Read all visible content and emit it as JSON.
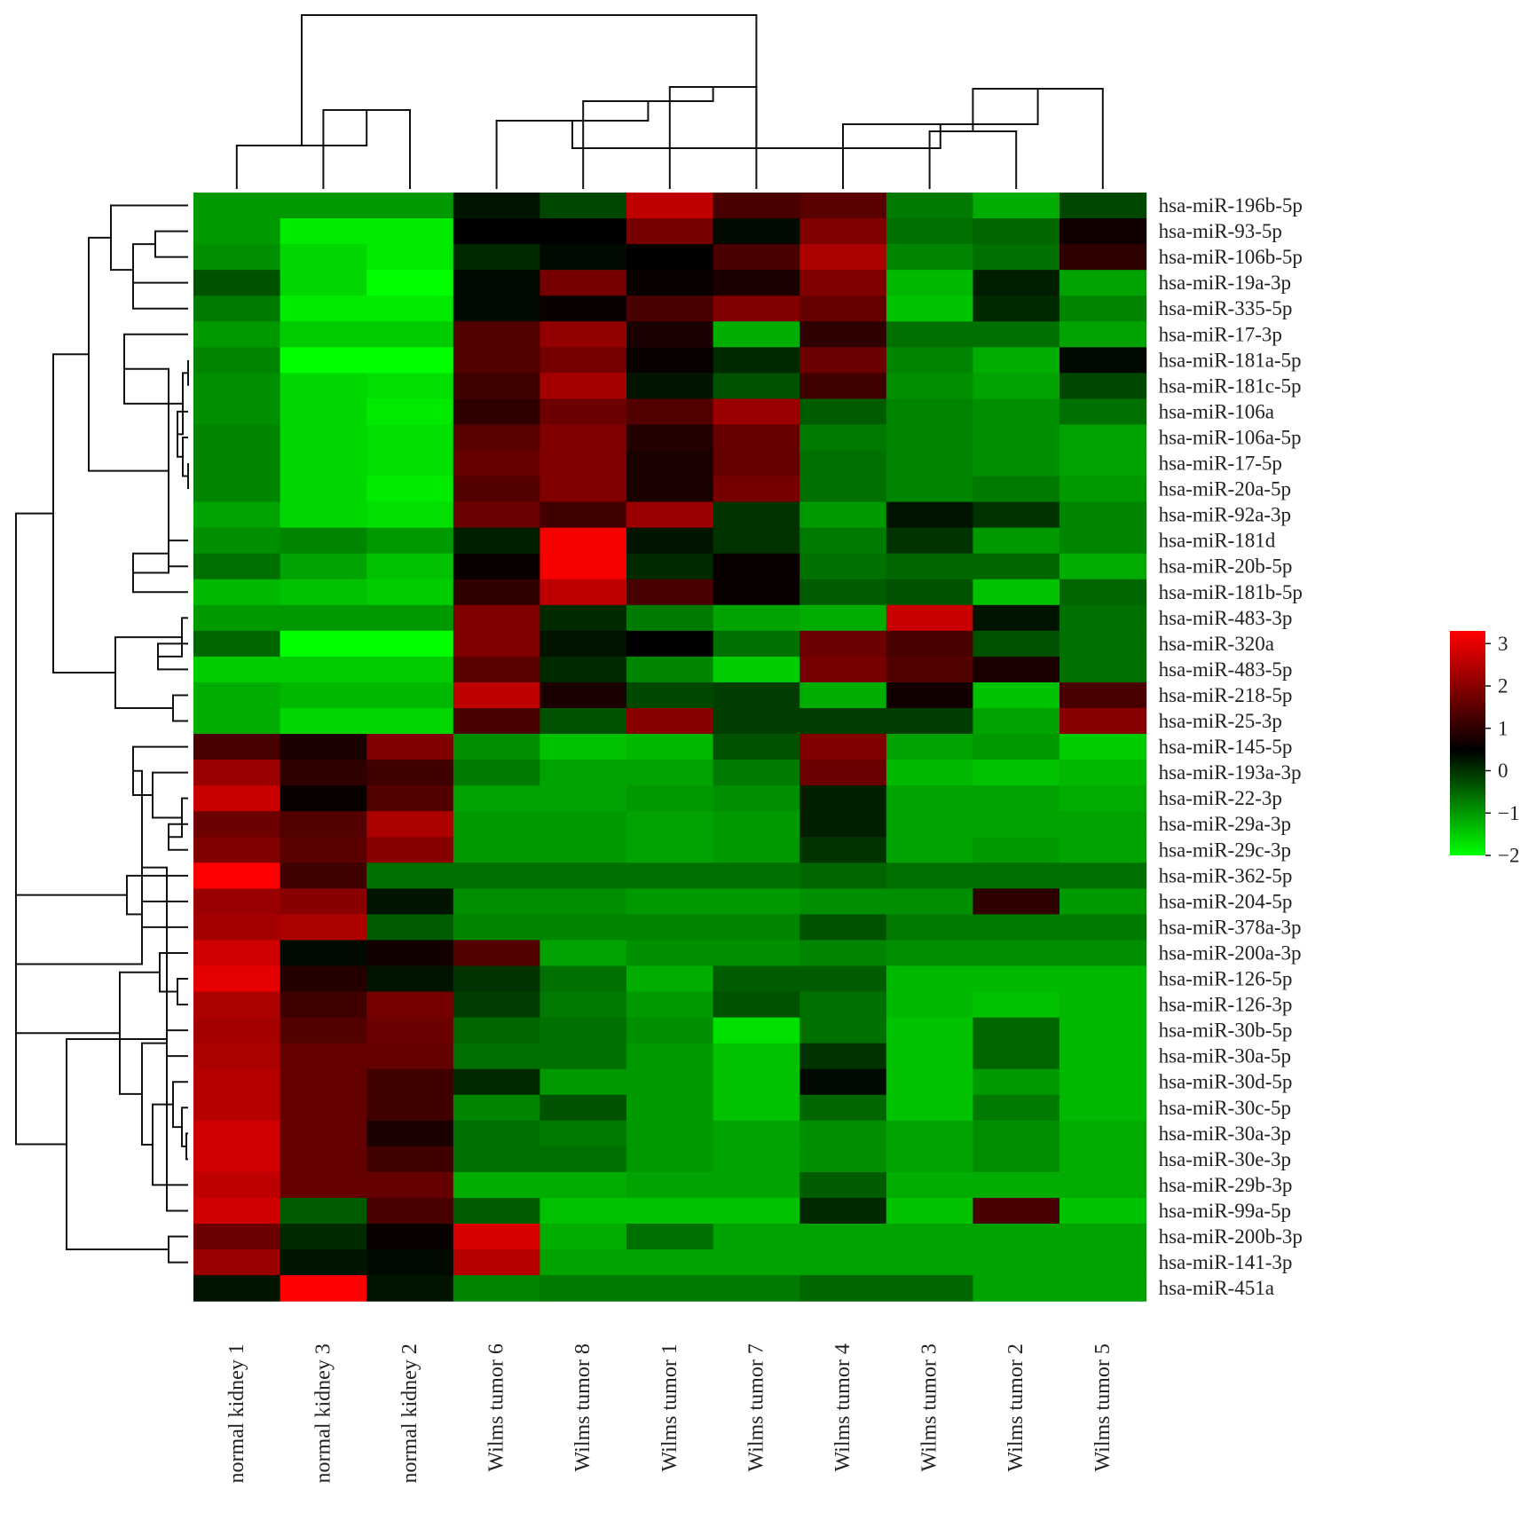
{
  "chart_data": {
    "type": "heatmap",
    "title": "",
    "columns": [
      "normal kidney 1",
      "normal kidney 3",
      "normal kidney 2",
      "Wilms tumor 6",
      "Wilms tumor 8",
      "Wilms tumor 1",
      "Wilms tumor 7",
      "Wilms tumor 4",
      "Wilms tumor 3",
      "Wilms tumor 2",
      "Wilms tumor 5"
    ],
    "rows": [
      "hsa-miR-196b-5p",
      "hsa-miR-93-5p",
      "hsa-miR-106b-5p",
      "hsa-miR-19a-3p",
      "hsa-miR-335-5p",
      "hsa-miR-17-3p",
      "hsa-miR-181a-5p",
      "hsa-miR-181c-5p",
      "hsa-miR-106a",
      "hsa-miR-106a-5p",
      "hsa-miR-17-5p",
      "hsa-miR-20a-5p",
      "hsa-miR-92a-3p",
      "hsa-miR-181d",
      "hsa-miR-20b-5p",
      "hsa-miR-181b-5p",
      "hsa-miR-483-3p",
      "hsa-miR-320a",
      "hsa-miR-483-5p",
      "hsa-miR-218-5p",
      "hsa-miR-25-3p",
      "hsa-miR-145-5p",
      "hsa-miR-193a-3p",
      "hsa-miR-22-3p",
      "hsa-miR-29a-3p",
      "hsa-miR-29c-3p",
      "hsa-miR-362-5p",
      "hsa-miR-204-5p",
      "hsa-miR-378a-3p",
      "hsa-miR-200a-3p",
      "hsa-miR-126-5p",
      "hsa-miR-126-3p",
      "hsa-miR-30b-5p",
      "hsa-miR-30a-5p",
      "hsa-miR-30d-5p",
      "hsa-miR-30c-5p",
      "hsa-miR-30a-3p",
      "hsa-miR-30e-3p",
      "hsa-miR-29b-3p",
      "hsa-miR-99a-5p",
      "hsa-miR-200b-3p",
      "hsa-miR-141-3p",
      "hsa-miR-451a"
    ],
    "values": [
      [
        -1.0,
        -1.0,
        -1.0,
        0.3,
        -0.2,
        2.6,
        1.3,
        1.5,
        -0.7,
        -1.2,
        -0.2
      ],
      [
        -1.0,
        -1.8,
        -1.8,
        0.5,
        0.5,
        1.8,
        0.4,
        1.9,
        -0.6,
        -0.5,
        0.7
      ],
      [
        -0.9,
        -1.6,
        -1.8,
        0.1,
        0.4,
        0.5,
        1.3,
        2.4,
        -0.8,
        -0.6,
        1.0
      ],
      [
        -0.3,
        -1.6,
        -2.0,
        0.4,
        1.8,
        0.6,
        0.8,
        1.9,
        -1.3,
        0.2,
        -1.1
      ],
      [
        -0.7,
        -1.8,
        -1.8,
        0.4,
        0.6,
        1.3,
        1.9,
        1.6,
        -1.4,
        0.1,
        -0.8
      ],
      [
        -1.0,
        -1.5,
        -1.5,
        1.4,
        2.1,
        0.8,
        -1.2,
        1.0,
        -0.6,
        -0.6,
        -1.1
      ],
      [
        -0.8,
        -2.0,
        -2.0,
        1.4,
        1.8,
        0.6,
        0.1,
        1.7,
        -0.8,
        -1.2,
        0.4
      ],
      [
        -0.9,
        -1.6,
        -1.7,
        1.2,
        2.3,
        0.3,
        -0.3,
        1.2,
        -0.9,
        -1.1,
        -0.2
      ],
      [
        -0.9,
        -1.6,
        -1.8,
        1.0,
        1.7,
        1.4,
        2.2,
        -0.4,
        -0.8,
        -0.9,
        -0.6
      ],
      [
        -0.8,
        -1.6,
        -1.7,
        1.5,
        1.9,
        0.9,
        1.6,
        -0.7,
        -0.8,
        -0.9,
        -1.1
      ],
      [
        -0.8,
        -1.6,
        -1.7,
        1.6,
        1.9,
        0.8,
        1.6,
        -0.6,
        -0.8,
        -0.9,
        -1.1
      ],
      [
        -0.8,
        -1.6,
        -1.8,
        1.4,
        1.9,
        0.8,
        1.8,
        -0.6,
        -0.8,
        -0.7,
        -1.0
      ],
      [
        -1.1,
        -1.6,
        -1.7,
        1.7,
        1.2,
        2.2,
        0.0,
        -1.0,
        0.3,
        0.0,
        -0.8
      ],
      [
        -0.9,
        -0.8,
        -1.0,
        0.2,
        3.2,
        0.3,
        0.0,
        -0.7,
        0.0,
        -1.0,
        -0.8
      ],
      [
        -0.6,
        -1.1,
        -1.4,
        0.6,
        3.2,
        0.1,
        0.6,
        -0.6,
        -0.5,
        -0.5,
        -1.2
      ],
      [
        -1.3,
        -1.4,
        -1.5,
        1.0,
        2.6,
        1.3,
        0.6,
        -0.4,
        -0.3,
        -1.4,
        -0.5
      ],
      [
        -1.0,
        -1.0,
        -1.0,
        1.9,
        0.1,
        -0.7,
        -1.1,
        -1.2,
        2.7,
        0.3,
        -0.6
      ],
      [
        -0.5,
        -2.0,
        -2.0,
        1.9,
        0.3,
        0.5,
        -0.6,
        1.7,
        1.3,
        -0.3,
        -0.6
      ],
      [
        -1.5,
        -1.5,
        -1.5,
        1.5,
        0.1,
        -0.8,
        -1.5,
        1.8,
        1.4,
        0.8,
        -0.6
      ],
      [
        -1.2,
        -1.3,
        -1.3,
        2.6,
        0.8,
        -0.2,
        -0.1,
        -1.2,
        0.7,
        -1.4,
        1.3
      ],
      [
        -1.2,
        -1.6,
        -1.6,
        1.3,
        -0.3,
        2.0,
        -0.1,
        -0.1,
        -0.1,
        -1.1,
        2.0
      ],
      [
        1.3,
        0.8,
        1.9,
        -0.9,
        -1.4,
        -1.3,
        -0.3,
        1.9,
        -1.1,
        -1.0,
        -1.5
      ],
      [
        2.2,
        1.0,
        1.2,
        -0.7,
        -1.1,
        -1.1,
        -0.7,
        1.7,
        -1.3,
        -1.4,
        -1.3
      ],
      [
        2.7,
        0.6,
        1.4,
        -1.1,
        -1.1,
        -1.0,
        -0.9,
        0.2,
        -1.1,
        -1.1,
        -1.2
      ],
      [
        1.7,
        1.4,
        2.4,
        -1.0,
        -1.0,
        -1.1,
        -1.0,
        0.2,
        -1.1,
        -1.1,
        -1.1
      ],
      [
        1.9,
        1.5,
        2.0,
        -1.0,
        -1.0,
        -1.1,
        -1.0,
        0.0,
        -1.1,
        -1.0,
        -1.1
      ],
      [
        3.3,
        1.2,
        -0.6,
        -0.6,
        -0.6,
        -0.6,
        -0.6,
        -0.5,
        -0.6,
        -0.6,
        -0.6
      ],
      [
        2.2,
        2.0,
        0.3,
        -0.9,
        -0.9,
        -1.0,
        -1.0,
        -0.9,
        -0.9,
        1.0,
        -1.0
      ],
      [
        2.3,
        2.4,
        -0.4,
        -0.8,
        -0.8,
        -0.8,
        -0.8,
        -0.3,
        -0.7,
        -0.7,
        -0.7
      ],
      [
        2.8,
        0.4,
        0.7,
        1.4,
        -1.1,
        -0.9,
        -0.9,
        -0.8,
        -0.9,
        -0.9,
        -0.9
      ],
      [
        3.0,
        0.9,
        0.3,
        0.0,
        -0.6,
        -1.2,
        -0.4,
        -0.4,
        -1.3,
        -1.3,
        -1.3
      ],
      [
        2.4,
        1.2,
        1.8,
        -0.1,
        -0.7,
        -1.0,
        -0.3,
        -0.6,
        -1.3,
        -1.4,
        -1.3
      ],
      [
        2.3,
        1.4,
        1.7,
        -0.5,
        -0.6,
        -0.9,
        -1.7,
        -0.6,
        -1.4,
        -0.5,
        -1.3
      ],
      [
        2.4,
        1.6,
        1.6,
        -0.6,
        -0.6,
        -1.0,
        -1.4,
        0.0,
        -1.4,
        -0.5,
        -1.3
      ],
      [
        2.5,
        1.6,
        1.2,
        0.1,
        -1.0,
        -1.0,
        -1.4,
        0.4,
        -1.4,
        -1.0,
        -1.3
      ],
      [
        2.5,
        1.6,
        1.2,
        -0.8,
        -0.3,
        -1.0,
        -1.4,
        -0.5,
        -1.4,
        -0.7,
        -1.3
      ],
      [
        2.8,
        1.6,
        0.8,
        -0.6,
        -0.7,
        -1.0,
        -1.1,
        -0.9,
        -1.1,
        -0.9,
        -1.2
      ],
      [
        2.8,
        1.6,
        1.2,
        -0.6,
        -0.6,
        -1.0,
        -1.1,
        -0.9,
        -1.1,
        -0.9,
        -1.2
      ],
      [
        2.6,
        1.6,
        1.6,
        -1.2,
        -1.2,
        -1.1,
        -1.1,
        -0.4,
        -1.2,
        -1.2,
        -1.2
      ],
      [
        2.8,
        -0.4,
        1.3,
        -0.4,
        -1.4,
        -1.4,
        -1.4,
        0.1,
        -1.4,
        1.3,
        -1.4
      ],
      [
        1.7,
        0.1,
        0.6,
        2.9,
        -1.2,
        -0.6,
        -1.1,
        -1.1,
        -1.1,
        -1.1,
        -1.1
      ],
      [
        2.2,
        0.3,
        0.4,
        2.5,
        -1.1,
        -1.1,
        -1.1,
        -1.1,
        -1.1,
        -1.1,
        -1.1
      ],
      [
        0.3,
        3.3,
        0.3,
        -0.8,
        -0.7,
        -0.7,
        -0.7,
        -0.5,
        -0.5,
        -1.1,
        -1.1
      ]
    ],
    "color_scale": {
      "min": -2,
      "mid": 0.5,
      "max": 3.3,
      "low_color": "#00ff00",
      "mid_color": "#000000",
      "high_color": "#ff0000"
    },
    "legend": {
      "position": "right",
      "tick_values": [
        3,
        2,
        1,
        0,
        -1,
        -2
      ],
      "tick_labels": [
        "3",
        "2",
        "1",
        "0",
        "−1",
        "−2"
      ]
    },
    "row_dendrogram": true,
    "column_dendrogram": true
  }
}
